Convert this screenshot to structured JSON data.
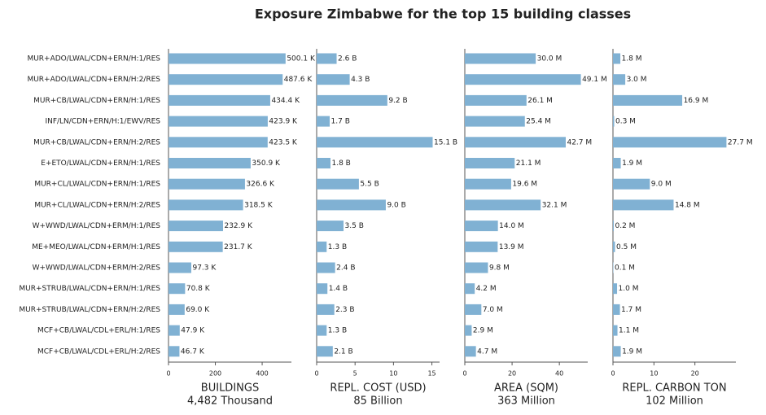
{
  "title": "Exposure Zimbabwe for the top 15 building classes",
  "chart_data": [
    {
      "type": "barh",
      "xlabel": "BUILDINGS",
      "total_label": "4,482 Thousand",
      "color": "#80b1d3",
      "categories": [
        "MUR+ADO/LWAL/CDN+ERN/H:1/RES",
        "MUR+ADO/LWAL/CDN+ERN/H:2/RES",
        "MUR+CB/LWAL/CDN+ERN/H:1/RES",
        "INF/LN/CDN+ERN/H:1/EWV/RES",
        "MUR+CB/LWAL/CDN+ERN/H:2/RES",
        "E+ETO/LWAL/CDN+ERN/H:1/RES",
        "MUR+CL/LWAL/CDN+ERN/H:1/RES",
        "MUR+CL/LWAL/CDN+ERN/H:2/RES",
        "W+WWD/LWAL/CDN+ERM/H:1/RES",
        "ME+MEO/LWAL/CDN+ERM/H:1/RES",
        "W+WWD/LWAL/CDN+ERM/H:2/RES",
        "MUR+STRUB/LWAL/CDN+ERN/H:1/RES",
        "MUR+STRUB/LWAL/CDN+ERN/H:2/RES",
        "MCF+CB/LWAL/CDL+ERL/H:1/RES",
        "MCF+CB/LWAL/CDL+ERL/H:2/RES"
      ],
      "values": [
        500.1,
        487.6,
        434.4,
        423.9,
        423.5,
        350.9,
        326.6,
        318.5,
        232.9,
        231.7,
        97.3,
        70.8,
        69.0,
        47.9,
        46.7
      ],
      "value_labels": [
        "500.1 K",
        "487.6 K",
        "434.4 K",
        "423.9 K",
        "423.5 K",
        "350.9 K",
        "326.6 K",
        "318.5 K",
        "232.9 K",
        "231.7 K",
        "97.3 K",
        "70.8 K",
        "69.0 K",
        "47.9 K",
        "46.7 K"
      ],
      "xlim": [
        0,
        525
      ],
      "xticks": [
        0,
        200,
        400
      ]
    },
    {
      "type": "barh",
      "xlabel": "REPL. COST (USD)",
      "total_label": "85 Billion",
      "color": "#80b1d3",
      "values": [
        2.6,
        4.3,
        9.2,
        1.7,
        15.1,
        1.8,
        5.5,
        9.0,
        3.5,
        1.3,
        2.4,
        1.4,
        2.3,
        1.3,
        2.1
      ],
      "value_labels": [
        "2.6 B",
        "4.3 B",
        "9.2 B",
        "1.7 B",
        "15.1 B",
        "1.8 B",
        "5.5 B",
        "9.0 B",
        "3.5 B",
        "1.3 B",
        "2.4 B",
        "1.4 B",
        "2.3 B",
        "1.3 B",
        "2.1 B"
      ],
      "xlim": [
        0,
        16
      ],
      "xticks": [
        0,
        5,
        10,
        15
      ]
    },
    {
      "type": "barh",
      "xlabel": "AREA (SQM)",
      "total_label": "363 Million",
      "color": "#80b1d3",
      "values": [
        30.0,
        49.1,
        26.1,
        25.4,
        42.7,
        21.1,
        19.6,
        32.1,
        14.0,
        13.9,
        9.8,
        4.2,
        7.0,
        2.9,
        4.7
      ],
      "value_labels": [
        "30.0 M",
        "49.1 M",
        "26.1 M",
        "25.4 M",
        "42.7 M",
        "21.1 M",
        "19.6 M",
        "32.1 M",
        "14.0 M",
        "13.9 M",
        "9.8 M",
        "4.2 M",
        "7.0 M",
        "2.9 M",
        "4.7 M"
      ],
      "xlim": [
        0,
        52
      ],
      "xticks": [
        0,
        20,
        40
      ]
    },
    {
      "type": "barh",
      "xlabel": "REPL. CARBON TON",
      "total_label": "102 Million",
      "color": "#80b1d3",
      "values": [
        1.8,
        3.0,
        16.9,
        0.3,
        27.7,
        1.9,
        9.0,
        14.8,
        0.2,
        0.5,
        0.1,
        1.0,
        1.7,
        1.1,
        1.9
      ],
      "value_labels": [
        "1.8 M",
        "3.0 M",
        "16.9 M",
        "0.3 M",
        "27.7 M",
        "1.9 M",
        "9.0 M",
        "14.8 M",
        "0.2 M",
        "0.5 M",
        "0.1 M",
        "1.0 M",
        "1.7 M",
        "1.1 M",
        "1.9 M"
      ],
      "xlim": [
        0,
        30
      ],
      "xticks": [
        0,
        10,
        20
      ]
    }
  ]
}
